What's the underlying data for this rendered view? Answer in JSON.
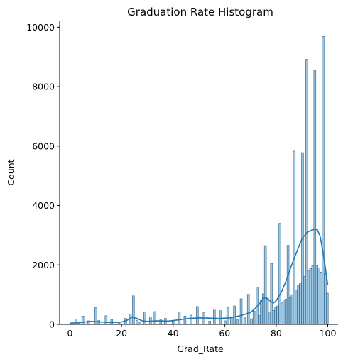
{
  "chart_data": {
    "type": "bar",
    "title": "Graduation Rate Histogram",
    "xlabel": "Grad_Rate",
    "ylabel": "Count",
    "xlim": [
      -4,
      104
    ],
    "ylim": [
      0,
      10200
    ],
    "xticks": [
      0,
      20,
      40,
      60,
      80,
      100
    ],
    "yticks": [
      0,
      2000,
      4000,
      6000,
      8000,
      10000
    ],
    "bin_width": 0.8,
    "grid": false,
    "colors": {
      "bar_fill": "#7bb3d8",
      "bar_edge": "#2e5f84",
      "kde_line": "#1f77b4"
    },
    "bins": [
      {
        "x": 1,
        "count": 40
      },
      {
        "x": 2.4,
        "count": 180
      },
      {
        "x": 3.2,
        "count": 60
      },
      {
        "x": 5,
        "count": 280
      },
      {
        "x": 7.2,
        "count": 120
      },
      {
        "x": 10,
        "count": 560
      },
      {
        "x": 11.2,
        "count": 130
      },
      {
        "x": 14,
        "count": 290
      },
      {
        "x": 16.2,
        "count": 170
      },
      {
        "x": 19,
        "count": 80
      },
      {
        "x": 21.6,
        "count": 200
      },
      {
        "x": 23.4,
        "count": 350
      },
      {
        "x": 24.6,
        "count": 960
      },
      {
        "x": 26,
        "count": 140
      },
      {
        "x": 27.2,
        "count": 70
      },
      {
        "x": 29,
        "count": 420
      },
      {
        "x": 31.2,
        "count": 250
      },
      {
        "x": 33,
        "count": 430
      },
      {
        "x": 35.2,
        "count": 150
      },
      {
        "x": 37,
        "count": 200
      },
      {
        "x": 40,
        "count": 100
      },
      {
        "x": 42.4,
        "count": 420
      },
      {
        "x": 44.6,
        "count": 280
      },
      {
        "x": 47,
        "count": 310
      },
      {
        "x": 49.4,
        "count": 600
      },
      {
        "x": 52,
        "count": 390
      },
      {
        "x": 54.2,
        "count": 110
      },
      {
        "x": 56,
        "count": 480
      },
      {
        "x": 58.4,
        "count": 460
      },
      {
        "x": 60.2,
        "count": 120
      },
      {
        "x": 61.2,
        "count": 560
      },
      {
        "x": 62.6,
        "count": 240
      },
      {
        "x": 63.8,
        "count": 620
      },
      {
        "x": 65,
        "count": 150
      },
      {
        "x": 66.4,
        "count": 860
      },
      {
        "x": 67.8,
        "count": 220
      },
      {
        "x": 69.2,
        "count": 1010
      },
      {
        "x": 70.4,
        "count": 190
      },
      {
        "x": 71.4,
        "count": 450
      },
      {
        "x": 72.6,
        "count": 1250
      },
      {
        "x": 73.4,
        "count": 300
      },
      {
        "x": 74.2,
        "count": 820
      },
      {
        "x": 75,
        "count": 1030
      },
      {
        "x": 75.8,
        "count": 2650
      },
      {
        "x": 76.6,
        "count": 880
      },
      {
        "x": 77.4,
        "count": 420
      },
      {
        "x": 78.2,
        "count": 2050
      },
      {
        "x": 79,
        "count": 470
      },
      {
        "x": 79.8,
        "count": 560
      },
      {
        "x": 80.6,
        "count": 620
      },
      {
        "x": 81.4,
        "count": 3400
      },
      {
        "x": 82.2,
        "count": 720
      },
      {
        "x": 83,
        "count": 820
      },
      {
        "x": 83.8,
        "count": 850
      },
      {
        "x": 84.6,
        "count": 2660
      },
      {
        "x": 85.4,
        "count": 900
      },
      {
        "x": 86.2,
        "count": 1000
      },
      {
        "x": 87,
        "count": 5830
      },
      {
        "x": 87.8,
        "count": 1150
      },
      {
        "x": 88.6,
        "count": 1300
      },
      {
        "x": 89.4,
        "count": 1400
      },
      {
        "x": 90.2,
        "count": 5780
      },
      {
        "x": 91,
        "count": 1620
      },
      {
        "x": 91.8,
        "count": 8920
      },
      {
        "x": 92.6,
        "count": 1800
      },
      {
        "x": 93.4,
        "count": 1880
      },
      {
        "x": 94.2,
        "count": 1970
      },
      {
        "x": 95,
        "count": 8540
      },
      {
        "x": 95.8,
        "count": 2000
      },
      {
        "x": 96.6,
        "count": 1900
      },
      {
        "x": 97.4,
        "count": 1760
      },
      {
        "x": 98.2,
        "count": 9690
      },
      {
        "x": 99,
        "count": 1720
      },
      {
        "x": 99.8,
        "count": 1050
      }
    ],
    "kde": {
      "x": [
        0,
        4,
        8,
        12,
        16,
        20,
        22,
        24,
        26,
        28,
        30,
        34,
        38,
        42,
        46,
        50,
        54,
        58,
        62,
        66,
        70,
        72,
        74,
        75,
        76,
        77,
        78,
        79,
        80,
        82,
        84,
        86,
        88,
        90,
        92,
        94,
        95,
        96,
        97,
        98,
        99,
        100
      ],
      "y": [
        40,
        60,
        100,
        80,
        60,
        80,
        130,
        240,
        200,
        120,
        100,
        120,
        110,
        150,
        200,
        220,
        210,
        200,
        220,
        290,
        400,
        550,
        750,
        870,
        900,
        840,
        760,
        720,
        800,
        1080,
        1500,
        2000,
        2450,
        2880,
        3100,
        3180,
        3200,
        3180,
        2980,
        2520,
        1950,
        1330
      ]
    }
  }
}
